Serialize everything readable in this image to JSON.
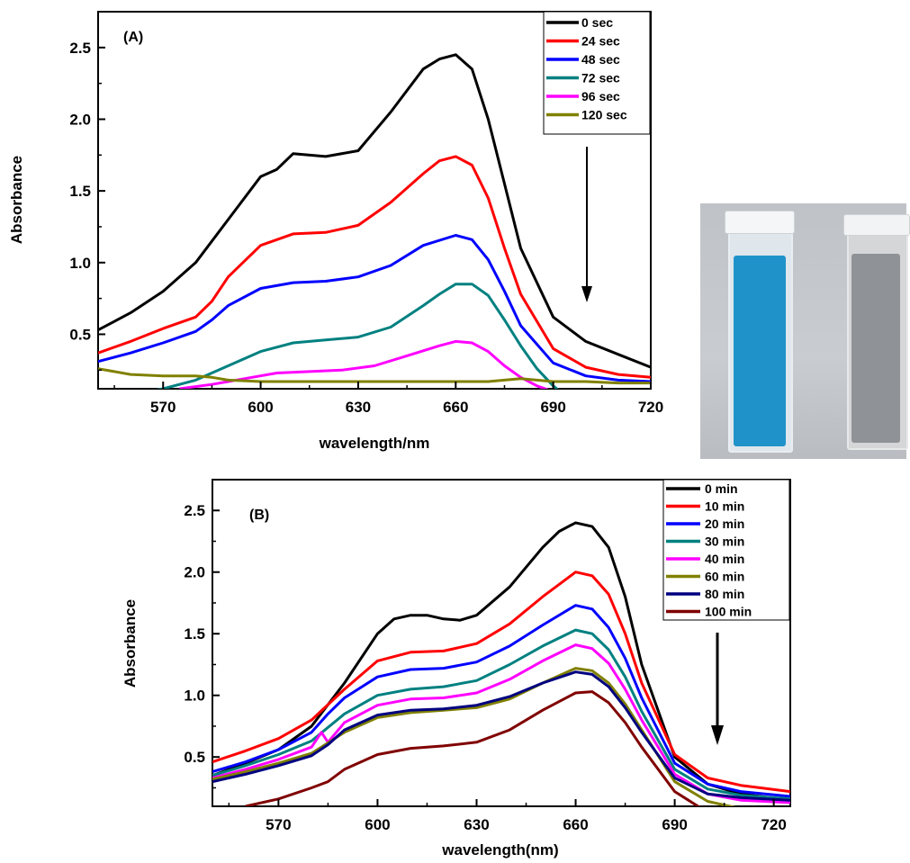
{
  "figure": {
    "photo": {
      "cuvette_left_color": "#1f93c9",
      "cuvette_right_color": "#8f9296"
    }
  },
  "chart_data": [
    {
      "type": "line",
      "panel_label": "(A)",
      "xlabel": "wavelength/nm",
      "ylabel": "Absorbance",
      "xlim": [
        550,
        720
      ],
      "ylim": [
        0.12,
        2.75
      ],
      "xticks": [
        570,
        600,
        630,
        660,
        690,
        720
      ],
      "yticks": [
        0.5,
        1.0,
        1.5,
        2.0,
        2.5
      ],
      "yticks_labels": [
        "0.5",
        "1.0",
        "1.5",
        "2.0",
        "2.5"
      ],
      "legend_position": "top-right",
      "annotation": "downward arrow indicating decreasing absorbance with time",
      "series": [
        {
          "name": "0 sec",
          "color": "#000000",
          "x": [
            550,
            560,
            570,
            580,
            590,
            600,
            605,
            610,
            620,
            630,
            640,
            650,
            655,
            660,
            665,
            670,
            675,
            680,
            690,
            700,
            710,
            720
          ],
          "y": [
            0.53,
            0.65,
            0.8,
            1.0,
            1.3,
            1.6,
            1.65,
            1.76,
            1.74,
            1.78,
            2.05,
            2.35,
            2.42,
            2.45,
            2.35,
            2.0,
            1.55,
            1.1,
            0.62,
            0.45,
            0.36,
            0.27
          ]
        },
        {
          "name": "24 sec",
          "color": "#ff0000",
          "x": [
            550,
            560,
            570,
            580,
            585,
            590,
            600,
            610,
            620,
            630,
            640,
            650,
            655,
            660,
            665,
            670,
            675,
            680,
            690,
            700,
            710,
            720
          ],
          "y": [
            0.37,
            0.45,
            0.54,
            0.62,
            0.73,
            0.9,
            1.12,
            1.2,
            1.21,
            1.26,
            1.42,
            1.62,
            1.71,
            1.74,
            1.68,
            1.45,
            1.1,
            0.78,
            0.4,
            0.27,
            0.22,
            0.2
          ]
        },
        {
          "name": "48 sec",
          "color": "#0000ff",
          "x": [
            550,
            560,
            570,
            580,
            585,
            590,
            600,
            610,
            620,
            630,
            640,
            650,
            660,
            665,
            670,
            675,
            680,
            690,
            700,
            710,
            720
          ],
          "y": [
            0.31,
            0.37,
            0.44,
            0.52,
            0.6,
            0.7,
            0.82,
            0.86,
            0.87,
            0.9,
            0.98,
            1.12,
            1.19,
            1.16,
            1.02,
            0.8,
            0.56,
            0.3,
            0.21,
            0.18,
            0.17
          ]
        },
        {
          "name": "72 sec",
          "color": "#008080",
          "x": [
            550,
            560,
            570,
            580,
            590,
            600,
            610,
            620,
            630,
            640,
            650,
            655,
            660,
            665,
            670,
            675,
            680,
            685,
            690,
            695
          ],
          "y": [
            0.05,
            0.08,
            0.12,
            0.18,
            0.28,
            0.38,
            0.44,
            0.46,
            0.48,
            0.55,
            0.7,
            0.78,
            0.85,
            0.85,
            0.77,
            0.6,
            0.42,
            0.26,
            0.14,
            0.05
          ]
        },
        {
          "name": "96 sec",
          "color": "#ff00ff",
          "x": [
            575,
            585,
            595,
            605,
            615,
            625,
            635,
            645,
            655,
            660,
            665,
            670,
            675,
            680,
            685,
            690
          ],
          "y": [
            0.12,
            0.15,
            0.19,
            0.23,
            0.24,
            0.25,
            0.28,
            0.35,
            0.42,
            0.45,
            0.44,
            0.38,
            0.28,
            0.2,
            0.14,
            0.1
          ]
        },
        {
          "name": "120 sec",
          "color": "#808000",
          "x": [
            550,
            560,
            570,
            580,
            585,
            590,
            600,
            610,
            620,
            630,
            640,
            650,
            660,
            670,
            680,
            690,
            700,
            710,
            720
          ],
          "y": [
            0.26,
            0.22,
            0.21,
            0.21,
            0.2,
            0.18,
            0.17,
            0.17,
            0.17,
            0.17,
            0.17,
            0.17,
            0.17,
            0.17,
            0.19,
            0.17,
            0.17,
            0.16,
            0.16
          ]
        }
      ]
    },
    {
      "type": "line",
      "panel_label": "(B)",
      "xlabel": "wavelength(nm)",
      "ylabel": "Absorbance",
      "xlim": [
        550,
        725
      ],
      "ylim": [
        0.1,
        2.75
      ],
      "xticks": [
        570,
        600,
        630,
        660,
        690,
        720
      ],
      "yticks": [
        0.5,
        1.0,
        1.5,
        2.0,
        2.5
      ],
      "yticks_labels": [
        "0.5",
        "1.0",
        "1.5",
        "2.0",
        "2.5"
      ],
      "legend_position": "top-right",
      "annotation": "downward arrow indicating decreasing absorbance with time",
      "series": [
        {
          "name": "0 min",
          "color": "#000000",
          "x": [
            550,
            560,
            570,
            580,
            590,
            600,
            605,
            610,
            615,
            620,
            625,
            630,
            640,
            650,
            655,
            660,
            665,
            670,
            675,
            680,
            690,
            700,
            710,
            725
          ],
          "y": [
            0.35,
            0.45,
            0.56,
            0.75,
            1.1,
            1.5,
            1.62,
            1.65,
            1.65,
            1.62,
            1.61,
            1.65,
            1.88,
            2.2,
            2.33,
            2.4,
            2.37,
            2.2,
            1.8,
            1.25,
            0.5,
            0.28,
            0.2,
            0.15
          ]
        },
        {
          "name": "10 min",
          "color": "#ff0000",
          "x": [
            550,
            560,
            570,
            580,
            590,
            600,
            610,
            620,
            630,
            640,
            650,
            660,
            665,
            670,
            675,
            680,
            690,
            700,
            710,
            725
          ],
          "y": [
            0.46,
            0.55,
            0.65,
            0.8,
            1.05,
            1.28,
            1.35,
            1.36,
            1.42,
            1.58,
            1.8,
            2.0,
            1.97,
            1.82,
            1.5,
            1.1,
            0.52,
            0.33,
            0.27,
            0.22
          ]
        },
        {
          "name": "20 min",
          "color": "#0000ff",
          "x": [
            550,
            560,
            570,
            580,
            585,
            590,
            600,
            610,
            620,
            630,
            640,
            650,
            660,
            665,
            670,
            675,
            680,
            690,
            700,
            710,
            725
          ],
          "y": [
            0.38,
            0.46,
            0.56,
            0.7,
            0.85,
            0.98,
            1.15,
            1.21,
            1.22,
            1.27,
            1.4,
            1.57,
            1.73,
            1.7,
            1.55,
            1.3,
            0.98,
            0.45,
            0.28,
            0.22,
            0.18
          ]
        },
        {
          "name": "30 min",
          "color": "#008080",
          "x": [
            550,
            560,
            570,
            580,
            590,
            600,
            610,
            620,
            630,
            640,
            650,
            660,
            665,
            670,
            675,
            680,
            690,
            700,
            710,
            725
          ],
          "y": [
            0.35,
            0.43,
            0.52,
            0.63,
            0.85,
            1.0,
            1.05,
            1.07,
            1.12,
            1.25,
            1.4,
            1.53,
            1.5,
            1.37,
            1.15,
            0.87,
            0.4,
            0.24,
            0.19,
            0.16
          ]
        },
        {
          "name": "40 min",
          "color": "#ff00ff",
          "x": [
            550,
            560,
            570,
            580,
            583,
            585,
            590,
            600,
            610,
            620,
            630,
            640,
            650,
            660,
            665,
            670,
            675,
            680,
            690,
            700,
            710,
            725
          ],
          "y": [
            0.33,
            0.4,
            0.48,
            0.58,
            0.7,
            0.62,
            0.78,
            0.92,
            0.97,
            0.98,
            1.02,
            1.13,
            1.28,
            1.41,
            1.38,
            1.26,
            1.05,
            0.8,
            0.36,
            0.2,
            0.15,
            0.13
          ]
        },
        {
          "name": "60 min",
          "color": "#808000",
          "x": [
            550,
            560,
            570,
            580,
            590,
            600,
            610,
            620,
            630,
            640,
            650,
            660,
            665,
            670,
            675,
            680,
            690,
            700,
            710
          ],
          "y": [
            0.32,
            0.38,
            0.45,
            0.53,
            0.7,
            0.82,
            0.86,
            0.88,
            0.9,
            0.97,
            1.1,
            1.22,
            1.2,
            1.1,
            0.93,
            0.72,
            0.3,
            0.14,
            0.08
          ]
        },
        {
          "name": "80 min",
          "color": "#000080",
          "x": [
            550,
            560,
            570,
            580,
            585,
            590,
            600,
            610,
            620,
            630,
            640,
            650,
            660,
            665,
            670,
            675,
            680,
            690,
            700,
            710,
            725
          ],
          "y": [
            0.3,
            0.36,
            0.43,
            0.51,
            0.6,
            0.72,
            0.84,
            0.88,
            0.89,
            0.92,
            0.99,
            1.1,
            1.19,
            1.17,
            1.07,
            0.9,
            0.7,
            0.33,
            0.2,
            0.17,
            0.15
          ]
        },
        {
          "name": "100 min",
          "color": "#800000",
          "x": [
            560,
            570,
            580,
            585,
            590,
            600,
            610,
            620,
            630,
            640,
            650,
            660,
            665,
            670,
            675,
            680,
            690,
            700
          ],
          "y": [
            0.1,
            0.16,
            0.25,
            0.3,
            0.4,
            0.52,
            0.57,
            0.59,
            0.62,
            0.72,
            0.88,
            1.02,
            1.03,
            0.94,
            0.78,
            0.58,
            0.22,
            0.05
          ]
        }
      ]
    }
  ]
}
